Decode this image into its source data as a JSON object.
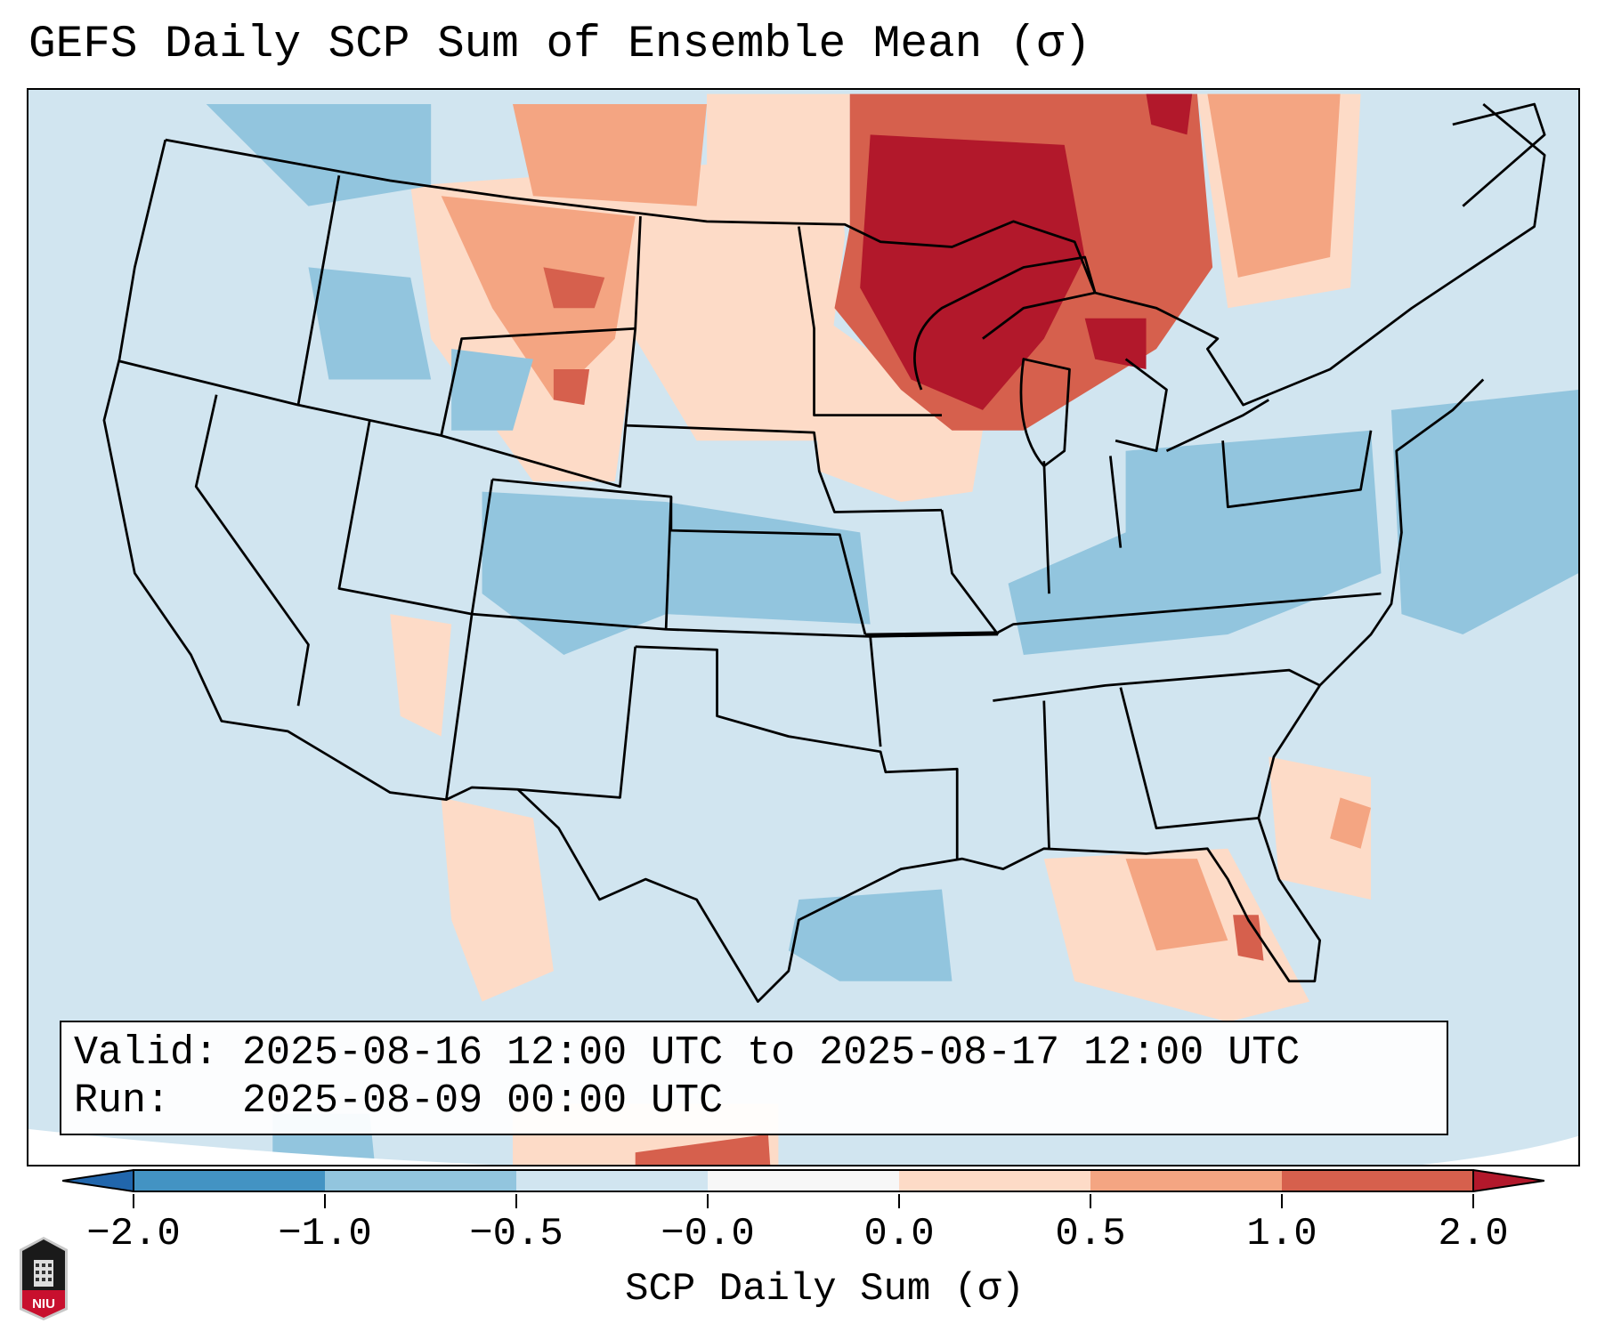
{
  "title": "GEFS Daily SCP Sum of Ensemble Mean (σ)",
  "info": {
    "valid_line": "Valid: 2025-08-16 12:00 UTC to 2025-08-17 12:00 UTC",
    "run_line": "Run:   2025-08-09 00:00 UTC"
  },
  "colorbar": {
    "label": "SCP Daily Sum (σ)",
    "ticks": [
      "−2.0",
      "−1.0",
      "−0.5",
      "−0.0",
      "0.0",
      "0.5",
      "1.0",
      "2.0"
    ],
    "colors": [
      "#2166ac",
      "#4393c3",
      "#92c5de",
      "#d1e5f0",
      "#f7f7f7",
      "#fddbc7",
      "#f4a582",
      "#d6604d",
      "#b2182b"
    ]
  },
  "logo": {
    "text": "NIU"
  }
}
